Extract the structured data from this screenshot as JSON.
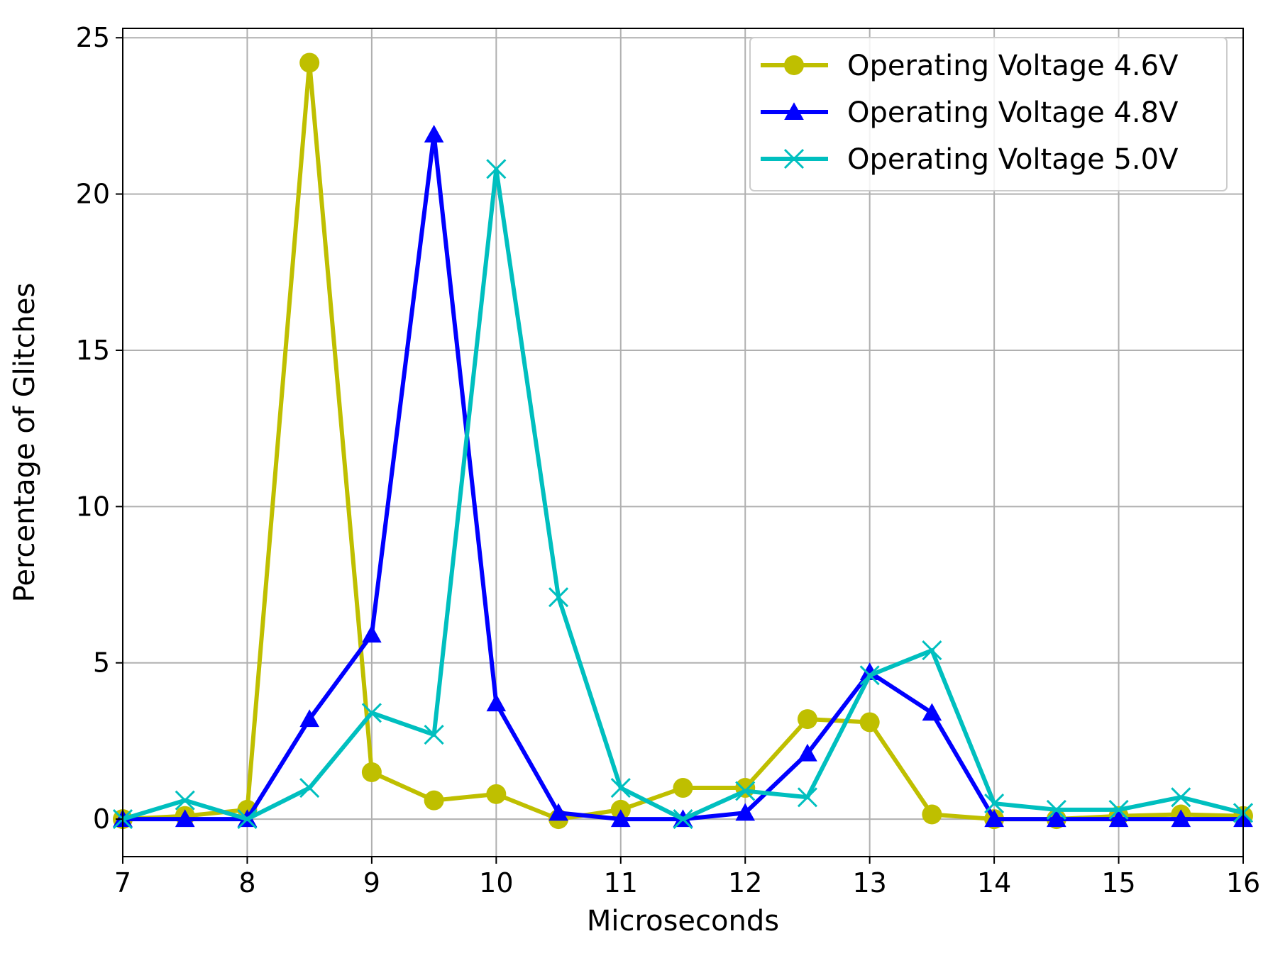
{
  "chart_data": {
    "type": "line",
    "title": "",
    "xlabel": "Microseconds",
    "ylabel": "Percentage of Glitches",
    "xlim": [
      7,
      16
    ],
    "ylim": [
      -1.2,
      25.3
    ],
    "xticks": [
      7,
      8,
      9,
      10,
      11,
      12,
      13,
      14,
      15,
      16
    ],
    "yticks": [
      0,
      5,
      10,
      15,
      20,
      25
    ],
    "grid": true,
    "legend_position": "top-right",
    "x": [
      7,
      7.5,
      8,
      8.5,
      9,
      9.5,
      10,
      10.5,
      11,
      11.5,
      12,
      12.5,
      13,
      13.5,
      14,
      14.5,
      15,
      15.5,
      16
    ],
    "series": [
      {
        "name": "Operating Voltage 4.6V",
        "color": "#bfbf00",
        "marker": "circle",
        "values": [
          0,
          0.1,
          0.3,
          24.2,
          1.5,
          0.6,
          0.8,
          0,
          0.3,
          1.0,
          1.0,
          3.2,
          3.1,
          0.15,
          0,
          0,
          0.1,
          0.15,
          0.1
        ]
      },
      {
        "name": "Operating Voltage 4.8V",
        "color": "#0000ff",
        "marker": "triangle",
        "values": [
          0,
          0,
          0,
          3.2,
          5.9,
          21.9,
          3.7,
          0.2,
          0,
          0,
          0.2,
          2.1,
          4.7,
          3.4,
          0,
          0,
          0,
          0,
          0
        ]
      },
      {
        "name": "Operating Voltage 5.0V",
        "color": "#00bfbf",
        "marker": "x",
        "values": [
          0,
          0.6,
          0,
          1.0,
          3.4,
          2.7,
          20.8,
          7.1,
          1.0,
          0,
          0.9,
          0.7,
          4.6,
          5.4,
          0.5,
          0.3,
          0.3,
          0.7,
          0.2
        ]
      }
    ]
  }
}
